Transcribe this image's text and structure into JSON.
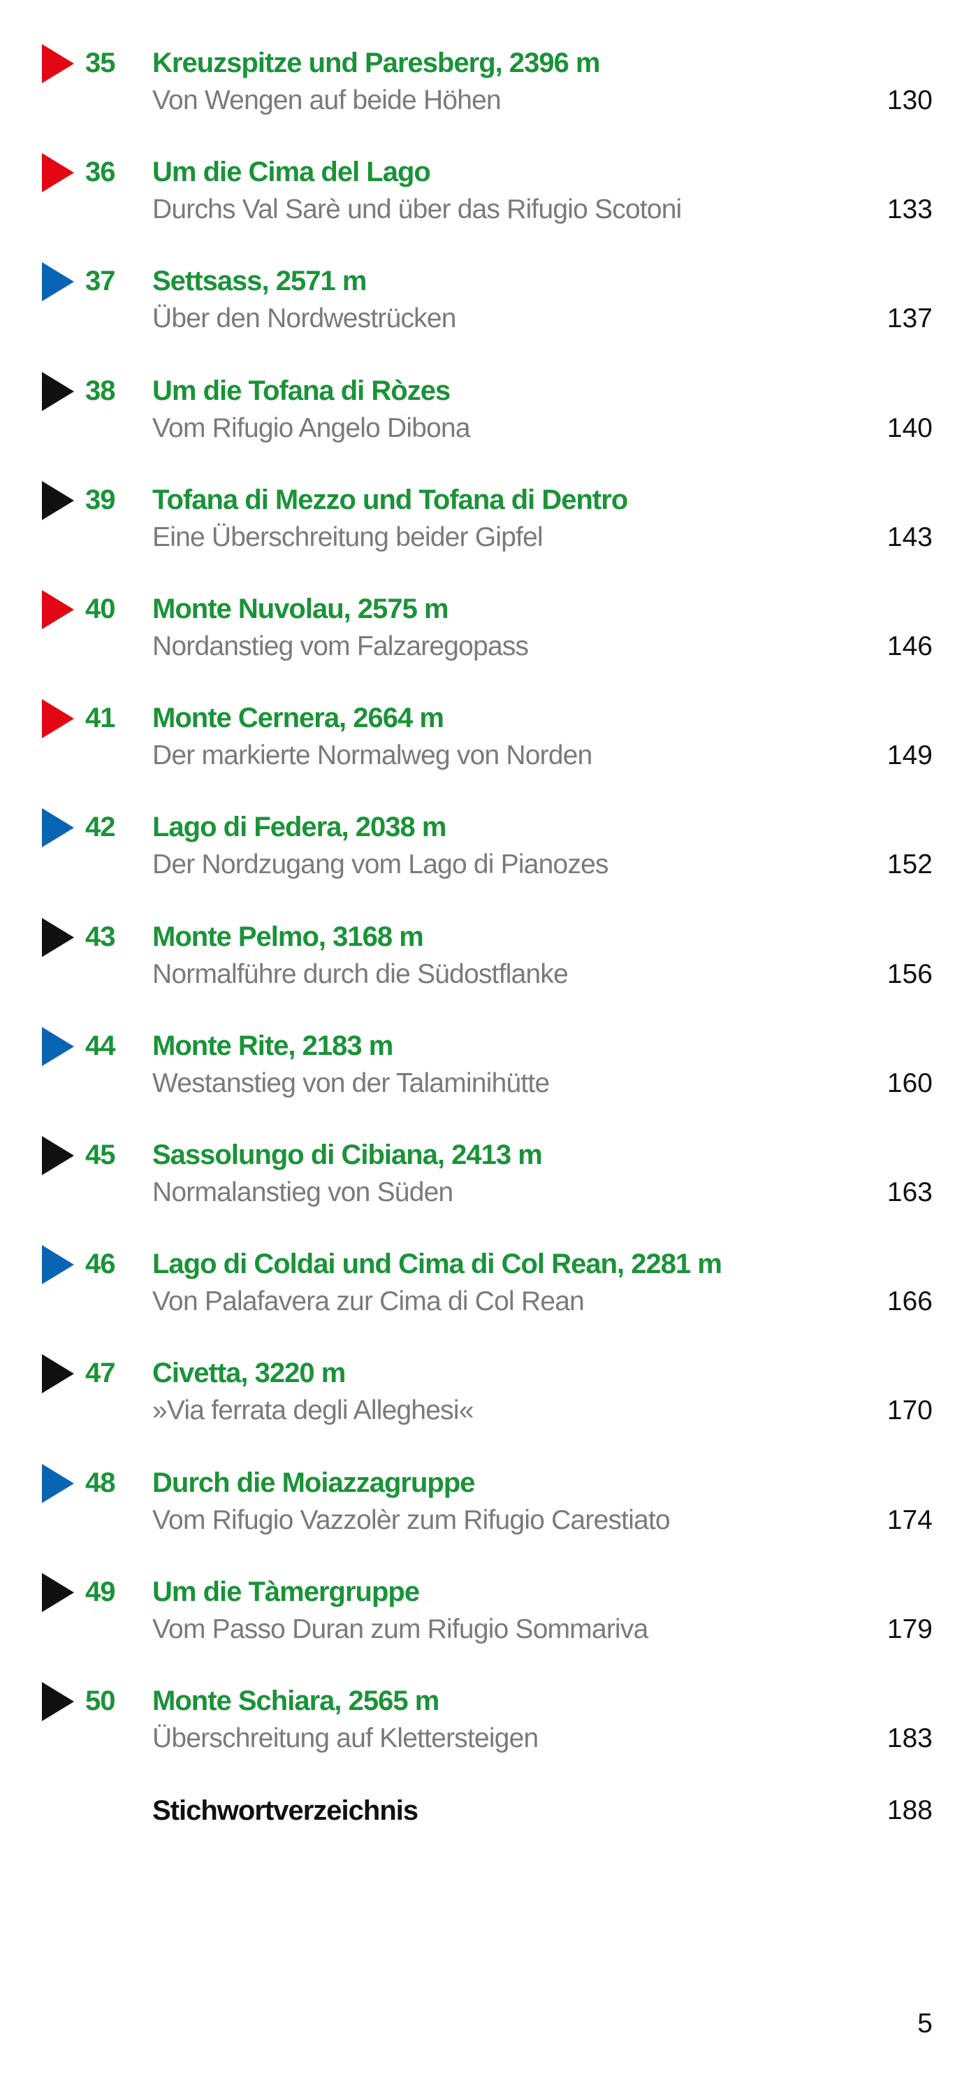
{
  "colors": {
    "red": "#e30613",
    "blue": "#0a64b4",
    "black": "#111111",
    "title_green": "#1a9338",
    "subtitle_gray": "#7a7a7a"
  },
  "entries": [
    {
      "marker": "red",
      "number": "35",
      "title": "Kreuzspitze und Paresberg, 2396 m",
      "subtitle": "Von Wengen auf beide Höhen",
      "page": "130"
    },
    {
      "marker": "red",
      "number": "36",
      "title": "Um die Cima del Lago",
      "subtitle": "Durchs Val Sarè und über das Rifugio Scotoni",
      "page": "133"
    },
    {
      "marker": "blue",
      "number": "37",
      "title": "Settsass, 2571 m",
      "subtitle": "Über den Nordwestrücken",
      "page": "137"
    },
    {
      "marker": "black",
      "number": "38",
      "title": "Um die Tofana di Ròzes",
      "subtitle": "Vom Rifugio Angelo Dibona",
      "page": "140"
    },
    {
      "marker": "black",
      "number": "39",
      "title": "Tofana di Mezzo und Tofana di Dentro",
      "subtitle": "Eine Überschreitung beider Gipfel",
      "page": "143"
    },
    {
      "marker": "red",
      "number": "40",
      "title": "Monte Nuvolau, 2575 m",
      "subtitle": "Nordanstieg vom Falzaregopass",
      "page": "146"
    },
    {
      "marker": "red",
      "number": "41",
      "title": "Monte Cernera, 2664 m",
      "subtitle": "Der markierte Normalweg von Norden",
      "page": "149"
    },
    {
      "marker": "blue",
      "number": "42",
      "title": "Lago di Federa, 2038 m",
      "subtitle": "Der Nordzugang vom Lago di Pianozes",
      "page": "152"
    },
    {
      "marker": "black",
      "number": "43",
      "title": "Monte Pelmo, 3168 m",
      "subtitle": "Normalführe durch die Südostflanke",
      "page": "156"
    },
    {
      "marker": "blue",
      "number": "44",
      "title": "Monte Rite, 2183 m",
      "subtitle": "Westanstieg von der Talaminihütte",
      "page": "160"
    },
    {
      "marker": "black",
      "number": "45",
      "title": "Sassolungo di Cibiana, 2413 m",
      "subtitle": "Normalanstieg von Süden",
      "page": "163"
    },
    {
      "marker": "blue",
      "number": "46",
      "title": "Lago di Coldai und Cima di Col Rean, 2281 m",
      "subtitle": "Von Palafavera zur Cima di Col Rean",
      "page": "166"
    },
    {
      "marker": "black",
      "number": "47",
      "title": "Civetta, 3220 m",
      "subtitle": "»Via ferrata degli Alleghesi«",
      "page": "170"
    },
    {
      "marker": "blue",
      "number": "48",
      "title": "Durch die Moiazzagruppe",
      "subtitle": "Vom Rifugio Vazzolèr zum Rifugio Carestiato",
      "page": "174"
    },
    {
      "marker": "black",
      "number": "49",
      "title": "Um die Tàmergruppe",
      "subtitle": "Vom Passo Duran zum Rifugio Sommariva",
      "page": "179"
    },
    {
      "marker": "black",
      "number": "50",
      "title": "Monte Schiara, 2565 m",
      "subtitle": "Überschreitung auf Klettersteigen",
      "page": "183"
    }
  ],
  "index": {
    "title": "Stichwortverzeichnis",
    "page": "188"
  },
  "folio": "5"
}
